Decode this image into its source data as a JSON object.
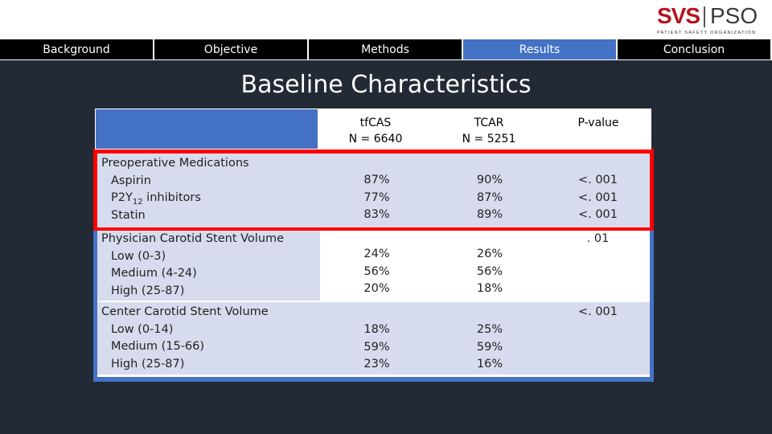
{
  "logo": {
    "left": "SVS",
    "right": "PSO",
    "subtitle": "PATIENT SAFETY ORGANIZATION"
  },
  "nav": [
    {
      "label": "Background",
      "active": false
    },
    {
      "label": "Objective",
      "active": false
    },
    {
      "label": "Methods",
      "active": false
    },
    {
      "label": "Results",
      "active": true
    },
    {
      "label": "Conclusion",
      "active": false
    }
  ],
  "title": "Baseline Characteristics",
  "table": {
    "headers": {
      "col1_line1": "tfCAS",
      "col1_line2": "N = 6640",
      "col2_line1": "TCAR",
      "col2_line2": "N = 5251",
      "col3": "P-value"
    },
    "groups": [
      {
        "title": "Preoperative Medications",
        "items": [
          "Aspirin",
          "P2Y",
          "Statin"
        ],
        "item2_sub": "12",
        "item2_tail": " inhibitors",
        "tfcas": [
          "87%",
          "77%",
          "83%"
        ],
        "tcar": [
          "90%",
          "87%",
          "89%"
        ],
        "pvalue": [
          "<. 001",
          "<. 001",
          "<. 001"
        ]
      },
      {
        "title": "Physician Carotid Stent Volume",
        "items": [
          "Low (0-3)",
          "Medium (4-24)",
          "High (25-87)"
        ],
        "tfcas": [
          "24%",
          "56%",
          "20%"
        ],
        "tcar": [
          "26%",
          "56%",
          "18%"
        ],
        "pvalue": ". 01"
      },
      {
        "title": "Center Carotid Stent Volume",
        "items": [
          "Low (0-14)",
          "Medium (15-66)",
          "High (25-87)"
        ],
        "tfcas": [
          "18%",
          "59%",
          "23%"
        ],
        "tcar": [
          "25%",
          "59%",
          "16%"
        ],
        "pvalue": "<. 001"
      }
    ]
  }
}
